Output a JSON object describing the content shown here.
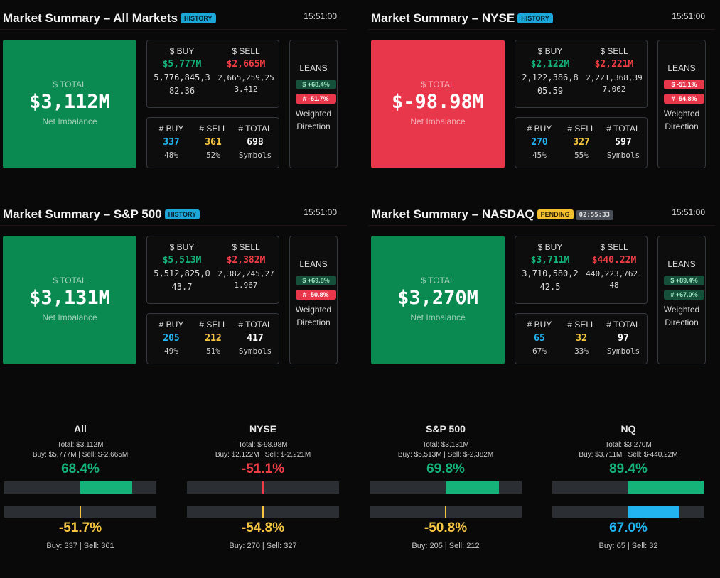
{
  "colors": {
    "green": "#15b27a",
    "red": "#ef3d45",
    "blue": "#22b4f0",
    "yellow": "#f5c542",
    "posBox": "#0a8a50",
    "negBox": "#e8364a"
  },
  "panels": [
    {
      "title": "Market Summary – All Markets",
      "badges": [
        {
          "text": "HISTORY",
          "kind": "history"
        }
      ],
      "time": "15:51:00",
      "sign": "pos",
      "total_label": "$ TOTAL",
      "total_value": "$3,112M",
      "total_sub": "Net Imbalance",
      "buy_header": "$ BUY",
      "sell_header": "$ SELL",
      "buy_short": "$5,777M",
      "sell_short": "$2,665M",
      "buy_raw": "5,776,845,382.36",
      "sell_raw": "2,665,259,253.412",
      "cnt_buy_header": "# BUY",
      "cnt_sell_header": "# SELL",
      "cnt_total_header": "# TOTAL",
      "cnt_buy": "337",
      "cnt_sell": "361",
      "cnt_total": "698",
      "pct_buy": "48%",
      "pct_sell": "52%",
      "symbols_label": "Symbols",
      "lean_title": "LEANS",
      "lean_dollar": {
        "text": "$ +68.4%",
        "kind": "g"
      },
      "lean_count": {
        "text": "# -51.7%",
        "kind": "r"
      },
      "lean_label": "Weighted Direction"
    },
    {
      "title": "Market Summary – NYSE",
      "badges": [
        {
          "text": "HISTORY",
          "kind": "history"
        }
      ],
      "time": "15:51:00",
      "sign": "neg",
      "total_label": "$ TOTAL",
      "total_value": "$-98.98M",
      "total_sub": "Net Imbalance",
      "buy_header": "$ BUY",
      "sell_header": "$ SELL",
      "buy_short": "$2,122M",
      "sell_short": "$2,221M",
      "buy_raw": "2,122,386,805.59",
      "sell_raw": "2,221,368,397.062",
      "cnt_buy_header": "# BUY",
      "cnt_sell_header": "# SELL",
      "cnt_total_header": "# TOTAL",
      "cnt_buy": "270",
      "cnt_sell": "327",
      "cnt_total": "597",
      "pct_buy": "45%",
      "pct_sell": "55%",
      "symbols_label": "Symbols",
      "lean_title": "LEANS",
      "lean_dollar": {
        "text": "$ -51.1%",
        "kind": "r"
      },
      "lean_count": {
        "text": "# -54.8%",
        "kind": "r"
      },
      "lean_label": "Weighted Direction"
    },
    {
      "title": "Market Summary – S&P 500",
      "badges": [
        {
          "text": "HISTORY",
          "kind": "history"
        }
      ],
      "time": "15:51:00",
      "sign": "pos",
      "total_label": "$ TOTAL",
      "total_value": "$3,131M",
      "total_sub": "Net Imbalance",
      "buy_header": "$ BUY",
      "sell_header": "$ SELL",
      "buy_short": "$5,513M",
      "sell_short": "$2,382M",
      "buy_raw": "5,512,825,043.7",
      "sell_raw": "2,382,245,271.967",
      "cnt_buy_header": "# BUY",
      "cnt_sell_header": "# SELL",
      "cnt_total_header": "# TOTAL",
      "cnt_buy": "205",
      "cnt_sell": "212",
      "cnt_total": "417",
      "pct_buy": "49%",
      "pct_sell": "51%",
      "symbols_label": "Symbols",
      "lean_title": "LEANS",
      "lean_dollar": {
        "text": "$ +69.8%",
        "kind": "g"
      },
      "lean_count": {
        "text": "# -50.8%",
        "kind": "r"
      },
      "lean_label": "Weighted Direction"
    },
    {
      "title": "Market Summary – NASDAQ",
      "badges": [
        {
          "text": "PENDING",
          "kind": "pending"
        },
        {
          "text": "02:55:33",
          "kind": "timer"
        }
      ],
      "time": "15:51:00",
      "sign": "pos",
      "total_label": "$ TOTAL",
      "total_value": "$3,270M",
      "total_sub": "Net Imbalance",
      "buy_header": "$ BUY",
      "sell_header": "$ SELL",
      "buy_short": "$3,711M",
      "sell_short": "$440.22M",
      "buy_raw": "3,710,580,242.5",
      "sell_raw": "440,223,762.48",
      "cnt_buy_header": "# BUY",
      "cnt_sell_header": "# SELL",
      "cnt_total_header": "# TOTAL",
      "cnt_buy": "65",
      "cnt_sell": "32",
      "cnt_total": "97",
      "pct_buy": "67%",
      "pct_sell": "33%",
      "symbols_label": "Symbols",
      "lean_title": "LEANS",
      "lean_dollar": {
        "text": "$ +89.4%",
        "kind": "g"
      },
      "lean_count": {
        "text": "# +67.0%",
        "kind": "g"
      },
      "lean_label": "Weighted Direction"
    }
  ],
  "summary": [
    {
      "name": "All",
      "total": "Total: $3,112M",
      "buysell": "Buy: $5,777M | Sell: $-2,665M",
      "dollar_pct": "68.4%",
      "dollar_lean": 0.684,
      "dollar_color": "green",
      "count_pct": "-51.7%",
      "count_lean": -0.517,
      "count_color": "yellow",
      "counts": "Buy: 337 | Sell: 361"
    },
    {
      "name": "NYSE",
      "total": "Total: $-98.98M",
      "buysell": "Buy: $2,122M | Sell: $-2,221M",
      "dollar_pct": "-51.1%",
      "dollar_lean": -0.511,
      "dollar_color": "red",
      "count_pct": "-54.8%",
      "count_lean": -0.548,
      "count_color": "yellow",
      "counts": "Buy: 270 | Sell: 327"
    },
    {
      "name": "S&P 500",
      "total": "Total: $3,131M",
      "buysell": "Buy: $5,513M | Sell: $-2,382M",
      "dollar_pct": "69.8%",
      "dollar_lean": 0.698,
      "dollar_color": "green",
      "count_pct": "-50.8%",
      "count_lean": -0.508,
      "count_color": "yellow",
      "counts": "Buy: 205 | Sell: 212"
    },
    {
      "name": "NQ",
      "total": "Total: $3,270M",
      "buysell": "Buy: $3,711M | Sell: $-440.22M",
      "dollar_pct": "89.4%",
      "dollar_lean": 0.894,
      "dollar_color": "green",
      "count_pct": "67.0%",
      "count_lean": 0.67,
      "count_color": "blue",
      "counts": "Buy: 65 | Sell: 32"
    }
  ]
}
